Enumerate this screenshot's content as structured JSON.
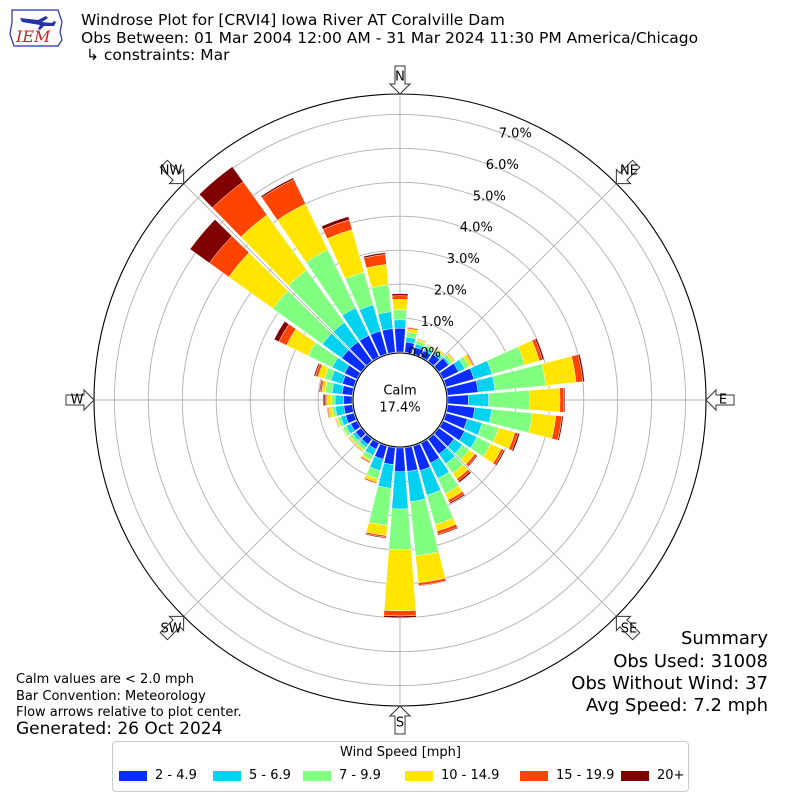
{
  "header": {
    "title": "Windrose Plot for [CRVI4] Iowa River  AT Coralville Dam",
    "subtitle": "Obs Between: 01 Mar 2004 12:00 AM - 31 Mar 2024 11:30 PM America/Chicago",
    "constraints": "↳ constraints: Mar",
    "logo_text": "IEM"
  },
  "center": {
    "label": "Calm",
    "value": "17.4%"
  },
  "compass": [
    "N",
    "NE",
    "E",
    "SE",
    "S",
    "SW",
    "W",
    "NW"
  ],
  "notes": {
    "calm": "Calm values are < 2.0 mph",
    "bar_convention": "Bar Convention: Meteorology",
    "flow": "Flow arrows relative to plot center.",
    "generated": "Generated: 26 Oct 2024"
  },
  "summary": {
    "title": "Summary",
    "obs_used": "Obs Used: 31008",
    "obs_without_wind": "Obs Without Wind: 37",
    "avg_speed": "Avg Speed: 7.2 mph"
  },
  "colors": {
    "bins": [
      "#0a2dff",
      "#00d2f0",
      "#80ff80",
      "#ffe500",
      "#ff4400",
      "#800000"
    ],
    "grid": "#b0b0b0"
  },
  "chart_data": {
    "type": "windrose",
    "radial_unit": "%",
    "radial_ticks": [
      "0.0%",
      "1.0%",
      "2.0%",
      "3.0%",
      "4.0%",
      "5.0%",
      "6.0%",
      "7.0%"
    ],
    "rlim": [
      0,
      7.6
    ],
    "legend": {
      "title": "Wind Speed [mph]",
      "bins": [
        "2 - 4.9",
        "5 - 6.9",
        "7 - 9.9",
        "10 - 14.9",
        "15 - 19.9",
        "20+"
      ],
      "placement": "bottom-center"
    },
    "directions_deg": [
      0,
      10,
      20,
      30,
      40,
      50,
      60,
      70,
      80,
      90,
      100,
      110,
      120,
      130,
      140,
      150,
      160,
      170,
      180,
      190,
      200,
      210,
      220,
      230,
      240,
      250,
      260,
      270,
      280,
      290,
      300,
      310,
      320,
      330,
      340,
      350
    ],
    "cumulative_percent": [
      [
        0.7,
        0.95,
        1.25,
        1.55,
        1.66,
        1.72
      ],
      [
        0.3,
        0.45,
        0.6,
        0.7,
        0.74,
        0.75
      ],
      [
        0.2,
        0.3,
        0.4,
        0.45,
        0.47,
        0.48
      ],
      [
        0.2,
        0.3,
        0.38,
        0.4,
        0.42,
        0.43
      ],
      [
        0.25,
        0.35,
        0.4,
        0.45,
        0.46,
        0.47
      ],
      [
        0.35,
        0.4,
        0.5,
        0.55,
        0.57,
        0.58
      ],
      [
        0.5,
        0.7,
        0.85,
        0.95,
        0.98,
        1.0
      ],
      [
        0.85,
        1.4,
        2.4,
        2.85,
        2.95,
        3.0
      ],
      [
        0.9,
        1.4,
        2.9,
        3.8,
        4.0,
        4.05
      ],
      [
        0.6,
        1.2,
        2.4,
        3.3,
        3.42,
        3.45
      ],
      [
        0.8,
        1.3,
        2.5,
        3.2,
        3.38,
        3.42
      ],
      [
        0.65,
        1.1,
        1.6,
        2.1,
        2.2,
        2.25
      ],
      [
        0.7,
        1.1,
        1.55,
        1.9,
        1.98,
        2.02
      ],
      [
        0.55,
        0.85,
        1.1,
        1.3,
        1.37,
        1.4
      ],
      [
        0.55,
        0.9,
        1.25,
        1.45,
        1.53,
        1.58
      ],
      [
        0.65,
        1.15,
        1.65,
        1.85,
        1.94,
        1.98
      ],
      [
        0.75,
        1.5,
        2.4,
        2.6,
        2.7,
        2.73
      ],
      [
        0.7,
        1.6,
        3.2,
        4.0,
        4.08,
        4.1
      ],
      [
        0.7,
        1.8,
        3.0,
        4.8,
        4.95,
        5.0
      ],
      [
        0.5,
        1.2,
        2.3,
        2.6,
        2.65,
        2.68
      ],
      [
        0.4,
        0.75,
        1.0,
        1.1,
        1.14,
        1.15
      ],
      [
        0.2,
        0.4,
        0.55,
        0.6,
        0.63,
        0.65
      ],
      [
        0.2,
        0.3,
        0.4,
        0.45,
        0.47,
        0.48
      ],
      [
        0.2,
        0.3,
        0.4,
        0.44,
        0.46,
        0.47
      ],
      [
        0.2,
        0.35,
        0.45,
        0.48,
        0.49,
        0.5
      ],
      [
        0.25,
        0.4,
        0.5,
        0.55,
        0.57,
        0.58
      ],
      [
        0.25,
        0.5,
        0.6,
        0.7,
        0.73,
        0.75
      ],
      [
        0.25,
        0.5,
        0.6,
        0.75,
        0.8,
        0.85
      ],
      [
        0.3,
        0.6,
        0.8,
        0.9,
        0.95,
        0.98
      ],
      [
        0.35,
        0.7,
        0.9,
        1.1,
        1.18,
        1.22
      ],
      [
        0.4,
        0.8,
        1.6,
        2.3,
        2.55,
        2.7
      ],
      [
        0.7,
        1.4,
        3.2,
        4.8,
        5.5,
        6.2
      ],
      [
        0.7,
        1.4,
        3.3,
        5.3,
        6.5,
        7.05
      ],
      [
        0.7,
        1.6,
        3.5,
        5.0,
        5.8,
        5.85
      ],
      [
        0.7,
        1.5,
        2.5,
        3.8,
        4.1,
        4.2
      ],
      [
        0.7,
        1.2,
        2.0,
        2.6,
        2.9,
        2.95
      ]
    ]
  }
}
